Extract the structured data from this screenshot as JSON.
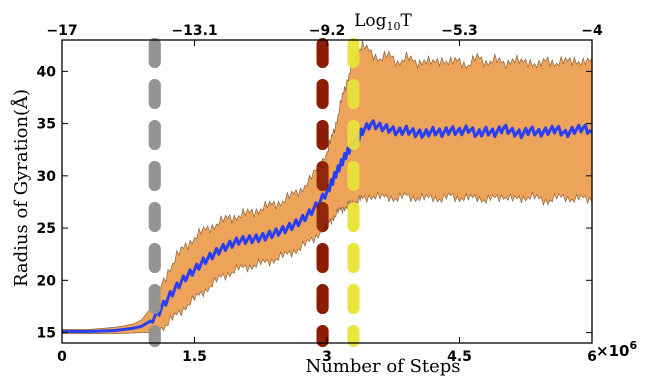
{
  "chart_data": {
    "type": "area",
    "title": "",
    "xlabel": "Number of Steps",
    "ylabel": "Radius of Gyration(Å)",
    "x_multiplier_label": "×10",
    "x_multiplier_exponent": "6",
    "xlim": [
      0,
      6000000
    ],
    "ylim": [
      14,
      43
    ],
    "x_ticks": [
      0,
      1500000,
      3000000,
      4500000,
      6000000
    ],
    "x_tick_labels": [
      "0",
      "1.5",
      "3",
      "4.5",
      "6"
    ],
    "y_ticks": [
      15,
      20,
      25,
      30,
      35,
      40
    ],
    "y_tick_labels": [
      "15",
      "20",
      "25",
      "30",
      "35",
      "40"
    ],
    "top_axis": {
      "label_base": "Log",
      "label_sub": "10",
      "label_var": "T",
      "ticks": [
        0,
        1500000,
        3000000,
        4500000,
        6000000
      ],
      "tick_labels": [
        "−17",
        "−13.1",
        "−9.2",
        "−5.3",
        "−4"
      ]
    },
    "grid": false,
    "series": [
      {
        "type": "line",
        "color": "#2b3ff2",
        "x": [
          0,
          300000,
          600000,
          800000,
          900000,
          1000000,
          1100000,
          1200000,
          1300000,
          1400000,
          1500000,
          1600000,
          1700000,
          1800000,
          1900000,
          2000000,
          2100000,
          2200000,
          2300000,
          2400000,
          2500000,
          2600000,
          2700000,
          2800000,
          2900000,
          3000000,
          3050000,
          3100000,
          3150000,
          3200000,
          3250000,
          3300000,
          3350000,
          3400000,
          3500000,
          3600000,
          3700000,
          3800000,
          3900000,
          4000000,
          4100000,
          4200000,
          4300000,
          4400000,
          4500000,
          4600000,
          4700000,
          4800000,
          4900000,
          5000000,
          5100000,
          5200000,
          5300000,
          5400000,
          5500000,
          5600000,
          5700000,
          5800000,
          5900000,
          6000000
        ],
        "y": [
          15.1,
          15.1,
          15.2,
          15.4,
          15.6,
          16.1,
          17.0,
          18.3,
          19.4,
          20.3,
          21.0,
          21.8,
          22.4,
          23.0,
          23.4,
          23.8,
          23.9,
          24.0,
          24.2,
          24.5,
          24.8,
          25.2,
          25.7,
          26.4,
          27.3,
          28.5,
          29.3,
          30.2,
          31.0,
          31.8,
          32.5,
          33.1,
          33.6,
          34.3,
          35.0,
          34.7,
          34.5,
          34.2,
          34.4,
          34.1,
          34.0,
          34.3,
          34.1,
          34.4,
          34.2,
          34.5,
          34.0,
          34.3,
          34.1,
          34.6,
          34.2,
          34.0,
          34.4,
          34.1,
          34.3,
          34.5,
          34.0,
          34.4,
          34.6,
          34.2
        ]
      },
      {
        "type": "band",
        "color": "#eea35a",
        "x": [
          0,
          300000,
          600000,
          800000,
          900000,
          1000000,
          1100000,
          1200000,
          1300000,
          1400000,
          1500000,
          1600000,
          1700000,
          1800000,
          1900000,
          2000000,
          2100000,
          2200000,
          2300000,
          2400000,
          2500000,
          2600000,
          2700000,
          2800000,
          2900000,
          3000000,
          3050000,
          3100000,
          3150000,
          3200000,
          3250000,
          3300000,
          3350000,
          3400000,
          3500000,
          3600000,
          3700000,
          3800000,
          3900000,
          4000000,
          4100000,
          4200000,
          4300000,
          4400000,
          4500000,
          4600000,
          4700000,
          4800000,
          4900000,
          5000000,
          5100000,
          5200000,
          5300000,
          5400000,
          5500000,
          5600000,
          5700000,
          5800000,
          5900000,
          6000000
        ],
        "upper": [
          15.3,
          15.3,
          15.5,
          15.8,
          16.2,
          17.3,
          19.0,
          20.9,
          22.3,
          23.3,
          24.1,
          24.7,
          25.2,
          25.6,
          26.0,
          26.2,
          26.4,
          26.7,
          27.0,
          27.3,
          27.6,
          28.1,
          28.7,
          29.5,
          30.8,
          32.3,
          33.5,
          35.0,
          36.7,
          38.3,
          39.8,
          41.0,
          41.9,
          42.4,
          41.8,
          41.2,
          41.5,
          40.9,
          41.3,
          40.8,
          41.1,
          40.7,
          41.2,
          40.8,
          41.0,
          40.6,
          41.3,
          40.9,
          41.1,
          40.7,
          41.2,
          40.8,
          41.0,
          40.5,
          41.1,
          40.8,
          40.9,
          41.2,
          40.7,
          41.0
        ],
        "lower": [
          14.9,
          14.9,
          14.9,
          14.95,
          15.0,
          15.0,
          15.2,
          15.9,
          16.7,
          17.5,
          18.2,
          18.9,
          19.6,
          20.3,
          20.7,
          21.1,
          21.3,
          21.5,
          21.7,
          22.0,
          22.3,
          22.7,
          23.1,
          23.7,
          24.4,
          25.3,
          25.8,
          26.3,
          26.7,
          27.0,
          27.2,
          27.4,
          27.6,
          27.8,
          28.1,
          27.9,
          28.0,
          27.8,
          28.1,
          27.9,
          27.8,
          28.0,
          27.7,
          28.1,
          27.9,
          27.8,
          28.0,
          27.6,
          27.9,
          28.1,
          27.7,
          27.9,
          28.0,
          27.8,
          27.6,
          27.9,
          28.0,
          27.7,
          27.9,
          27.8
        ]
      }
    ],
    "markers": [
      {
        "type": "vline",
        "x": 1050000,
        "color": "#949494"
      },
      {
        "type": "vline",
        "x": 2950000,
        "color": "#8b1c05"
      },
      {
        "type": "vline",
        "x": 3300000,
        "color": "#e9e53a"
      }
    ]
  }
}
